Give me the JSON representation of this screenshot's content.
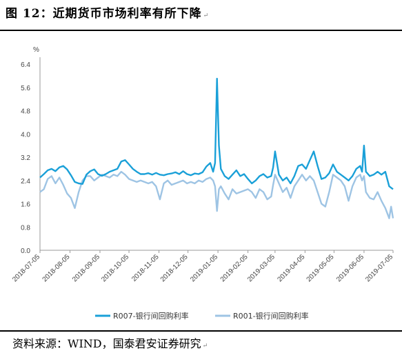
{
  "title": "图 12：近期货币市场利率有所下降",
  "title_mark": "↵",
  "source": "资料来源：WIND，国泰君安证券研究",
  "source_mark": "↵",
  "chart_data": {
    "type": "line",
    "ylabel": "%",
    "ylim": [
      0.0,
      6.4
    ],
    "yticks": [
      "0.0",
      "0.8",
      "1.6",
      "2.4",
      "3.2",
      "4.0",
      "4.8",
      "5.6",
      "6.4"
    ],
    "xlim": [
      "2018-07-05",
      "2019-07-05"
    ],
    "xticks": [
      "2018-07-05",
      "2018-08-05",
      "2018-09-05",
      "2018-10-05",
      "2018-11-05",
      "2018-12-05",
      "2019-01-05",
      "2019-02-05",
      "2019-03-05",
      "2019-04-05",
      "2019-05-05",
      "2019-06-05",
      "2019-07-05"
    ],
    "legend_position": "bottom",
    "series": [
      {
        "name": "R007-银行间回购利率",
        "color": "#1aa0d8",
        "points": [
          [
            "2018-07-05",
            2.5
          ],
          [
            "2018-07-09",
            2.62
          ],
          [
            "2018-07-13",
            2.75
          ],
          [
            "2018-07-17",
            2.8
          ],
          [
            "2018-07-21",
            2.72
          ],
          [
            "2018-07-25",
            2.85
          ],
          [
            "2018-07-29",
            2.9
          ],
          [
            "2018-08-02",
            2.78
          ],
          [
            "2018-08-06",
            2.58
          ],
          [
            "2018-08-10",
            2.35
          ],
          [
            "2018-08-14",
            2.3
          ],
          [
            "2018-08-18",
            2.28
          ],
          [
            "2018-08-22",
            2.6
          ],
          [
            "2018-08-26",
            2.72
          ],
          [
            "2018-08-30",
            2.78
          ],
          [
            "2018-09-03",
            2.62
          ],
          [
            "2018-09-07",
            2.56
          ],
          [
            "2018-09-11",
            2.62
          ],
          [
            "2018-09-15",
            2.7
          ],
          [
            "2018-09-19",
            2.75
          ],
          [
            "2018-09-23",
            2.8
          ],
          [
            "2018-09-27",
            3.05
          ],
          [
            "2018-10-01",
            3.1
          ],
          [
            "2018-10-05",
            2.95
          ],
          [
            "2018-10-09",
            2.8
          ],
          [
            "2018-10-13",
            2.7
          ],
          [
            "2018-10-17",
            2.62
          ],
          [
            "2018-10-21",
            2.62
          ],
          [
            "2018-10-25",
            2.65
          ],
          [
            "2018-10-29",
            2.6
          ],
          [
            "2018-11-02",
            2.66
          ],
          [
            "2018-11-06",
            2.6
          ],
          [
            "2018-11-10",
            2.58
          ],
          [
            "2018-11-14",
            2.62
          ],
          [
            "2018-11-18",
            2.64
          ],
          [
            "2018-11-22",
            2.68
          ],
          [
            "2018-11-26",
            2.62
          ],
          [
            "2018-11-30",
            2.72
          ],
          [
            "2018-12-04",
            2.62
          ],
          [
            "2018-12-08",
            2.58
          ],
          [
            "2018-12-12",
            2.64
          ],
          [
            "2018-12-16",
            2.62
          ],
          [
            "2018-12-20",
            2.68
          ],
          [
            "2018-12-24",
            2.88
          ],
          [
            "2018-12-28",
            3.0
          ],
          [
            "2018-12-31",
            2.7
          ],
          [
            "2019-01-02",
            3.0
          ],
          [
            "2019-01-04",
            5.9
          ],
          [
            "2019-01-06",
            3.6
          ],
          [
            "2019-01-08",
            2.8
          ],
          [
            "2019-01-12",
            2.55
          ],
          [
            "2019-01-16",
            2.45
          ],
          [
            "2019-01-20",
            2.6
          ],
          [
            "2019-01-24",
            2.75
          ],
          [
            "2019-01-28",
            2.55
          ],
          [
            "2019-02-01",
            2.62
          ],
          [
            "2019-02-05",
            2.45
          ],
          [
            "2019-02-09",
            2.3
          ],
          [
            "2019-02-13",
            2.4
          ],
          [
            "2019-02-17",
            2.55
          ],
          [
            "2019-02-21",
            2.62
          ],
          [
            "2019-02-25",
            2.5
          ],
          [
            "2019-03-01",
            2.55
          ],
          [
            "2019-03-03",
            2.85
          ],
          [
            "2019-03-05",
            3.4
          ],
          [
            "2019-03-09",
            2.6
          ],
          [
            "2019-03-13",
            2.4
          ],
          [
            "2019-03-17",
            2.5
          ],
          [
            "2019-03-21",
            2.3
          ],
          [
            "2019-03-25",
            2.55
          ],
          [
            "2019-03-29",
            2.9
          ],
          [
            "2019-04-02",
            2.95
          ],
          [
            "2019-04-06",
            2.8
          ],
          [
            "2019-04-10",
            3.1
          ],
          [
            "2019-04-14",
            3.4
          ],
          [
            "2019-04-18",
            2.9
          ],
          [
            "2019-04-22",
            2.45
          ],
          [
            "2019-04-26",
            2.5
          ],
          [
            "2019-04-30",
            2.65
          ],
          [
            "2019-05-04",
            2.95
          ],
          [
            "2019-05-08",
            2.7
          ],
          [
            "2019-05-12",
            2.6
          ],
          [
            "2019-05-16",
            2.5
          ],
          [
            "2019-05-20",
            2.4
          ],
          [
            "2019-05-24",
            2.55
          ],
          [
            "2019-05-28",
            2.8
          ],
          [
            "2019-06-01",
            2.9
          ],
          [
            "2019-06-03",
            2.7
          ],
          [
            "2019-06-05",
            3.6
          ],
          [
            "2019-06-07",
            2.7
          ],
          [
            "2019-06-11",
            2.55
          ],
          [
            "2019-06-15",
            2.6
          ],
          [
            "2019-06-19",
            2.7
          ],
          [
            "2019-06-23",
            2.6
          ],
          [
            "2019-06-27",
            2.7
          ],
          [
            "2019-07-01",
            2.2
          ],
          [
            "2019-07-05",
            2.1
          ]
        ]
      },
      {
        "name": "R001-银行间回购利率",
        "color": "#9ec4e4",
        "points": [
          [
            "2018-07-05",
            2.0
          ],
          [
            "2018-07-09",
            2.1
          ],
          [
            "2018-07-13",
            2.45
          ],
          [
            "2018-07-17",
            2.55
          ],
          [
            "2018-07-21",
            2.3
          ],
          [
            "2018-07-25",
            2.5
          ],
          [
            "2018-07-29",
            2.25
          ],
          [
            "2018-08-02",
            1.95
          ],
          [
            "2018-08-06",
            1.8
          ],
          [
            "2018-08-10",
            1.45
          ],
          [
            "2018-08-14",
            2.0
          ],
          [
            "2018-08-18",
            2.4
          ],
          [
            "2018-08-22",
            2.55
          ],
          [
            "2018-08-26",
            2.55
          ],
          [
            "2018-08-30",
            2.4
          ],
          [
            "2018-09-03",
            2.5
          ],
          [
            "2018-09-07",
            2.6
          ],
          [
            "2018-09-11",
            2.55
          ],
          [
            "2018-09-15",
            2.5
          ],
          [
            "2018-09-19",
            2.6
          ],
          [
            "2018-09-23",
            2.55
          ],
          [
            "2018-09-27",
            2.7
          ],
          [
            "2018-10-01",
            2.6
          ],
          [
            "2018-10-05",
            2.45
          ],
          [
            "2018-10-09",
            2.4
          ],
          [
            "2018-10-13",
            2.35
          ],
          [
            "2018-10-17",
            2.4
          ],
          [
            "2018-10-21",
            2.35
          ],
          [
            "2018-10-25",
            2.3
          ],
          [
            "2018-10-29",
            2.35
          ],
          [
            "2018-11-02",
            2.2
          ],
          [
            "2018-11-06",
            1.75
          ],
          [
            "2018-11-10",
            2.3
          ],
          [
            "2018-11-14",
            2.4
          ],
          [
            "2018-11-18",
            2.25
          ],
          [
            "2018-11-22",
            2.3
          ],
          [
            "2018-11-26",
            2.35
          ],
          [
            "2018-11-30",
            2.4
          ],
          [
            "2018-12-04",
            2.3
          ],
          [
            "2018-12-08",
            2.35
          ],
          [
            "2018-12-12",
            2.3
          ],
          [
            "2018-12-16",
            2.4
          ],
          [
            "2018-12-20",
            2.35
          ],
          [
            "2018-12-24",
            2.45
          ],
          [
            "2018-12-28",
            2.5
          ],
          [
            "2018-12-31",
            2.4
          ],
          [
            "2019-01-02",
            2.2
          ],
          [
            "2019-01-04",
            1.35
          ],
          [
            "2019-01-06",
            2.1
          ],
          [
            "2019-01-08",
            2.2
          ],
          [
            "2019-01-12",
            1.95
          ],
          [
            "2019-01-16",
            1.75
          ],
          [
            "2019-01-20",
            2.1
          ],
          [
            "2019-01-24",
            1.95
          ],
          [
            "2019-01-28",
            2.0
          ],
          [
            "2019-02-01",
            2.05
          ],
          [
            "2019-02-05",
            2.1
          ],
          [
            "2019-02-09",
            2.0
          ],
          [
            "2019-02-13",
            1.8
          ],
          [
            "2019-02-17",
            2.1
          ],
          [
            "2019-02-21",
            2.0
          ],
          [
            "2019-02-25",
            1.75
          ],
          [
            "2019-03-01",
            1.85
          ],
          [
            "2019-03-03",
            2.25
          ],
          [
            "2019-03-05",
            2.6
          ],
          [
            "2019-03-09",
            2.3
          ],
          [
            "2019-03-13",
            2.0
          ],
          [
            "2019-03-17",
            2.15
          ],
          [
            "2019-03-21",
            1.8
          ],
          [
            "2019-03-25",
            2.2
          ],
          [
            "2019-03-29",
            2.4
          ],
          [
            "2019-04-02",
            2.6
          ],
          [
            "2019-04-06",
            2.4
          ],
          [
            "2019-04-10",
            2.55
          ],
          [
            "2019-04-14",
            2.4
          ],
          [
            "2019-04-18",
            2.0
          ],
          [
            "2019-04-22",
            1.6
          ],
          [
            "2019-04-26",
            1.5
          ],
          [
            "2019-04-30",
            2.0
          ],
          [
            "2019-05-04",
            2.6
          ],
          [
            "2019-05-08",
            2.5
          ],
          [
            "2019-05-12",
            2.4
          ],
          [
            "2019-05-16",
            2.2
          ],
          [
            "2019-05-20",
            1.7
          ],
          [
            "2019-05-24",
            2.2
          ],
          [
            "2019-05-28",
            2.5
          ],
          [
            "2019-06-01",
            2.6
          ],
          [
            "2019-06-03",
            2.4
          ],
          [
            "2019-06-05",
            2.55
          ],
          [
            "2019-06-07",
            2.0
          ],
          [
            "2019-06-11",
            1.8
          ],
          [
            "2019-06-15",
            1.75
          ],
          [
            "2019-06-19",
            2.0
          ],
          [
            "2019-06-23",
            1.7
          ],
          [
            "2019-06-27",
            1.45
          ],
          [
            "2019-07-01",
            1.1
          ],
          [
            "2019-07-03",
            1.5
          ],
          [
            "2019-07-05",
            1.1
          ]
        ]
      }
    ]
  }
}
